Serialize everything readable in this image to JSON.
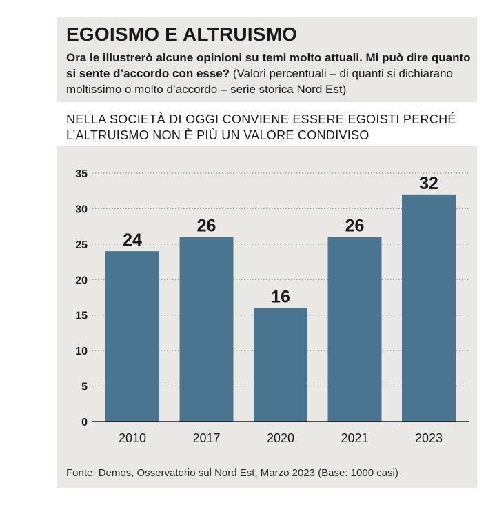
{
  "header": {
    "title": "EGOISMO E ALTRUISMO",
    "question_bold": "Ora le illustrerò alcune opinioni su temi molto attuali. Mi può dire quanto si sente d’accordo con esse?",
    "question_note": "(Valori percentuali – di quanti si dichiarano moltissimo o molto d’accordo – serie storica Nord Est)"
  },
  "chart_heading": "NELLA SOCIETÀ DI OGGI CONVIENE ESSERE EGOISTI PERCHÉ L’ALTRUISMO NON È PIÙ UN VALORE CONDIVISO",
  "chart_data": {
    "type": "bar",
    "categories": [
      "2010",
      "2017",
      "2020",
      "2021",
      "2023"
    ],
    "values": [
      24,
      26,
      16,
      26,
      32
    ],
    "ylim": [
      0,
      35
    ],
    "yticks": [
      0,
      5,
      10,
      15,
      20,
      25,
      30,
      35
    ],
    "grid": true,
    "bar_color": "#4a7590"
  },
  "footer": {
    "source": "Fonte: Demos, Osservatorio sul Nord Est, Marzo 2023 (Base: 1000 casi)"
  }
}
